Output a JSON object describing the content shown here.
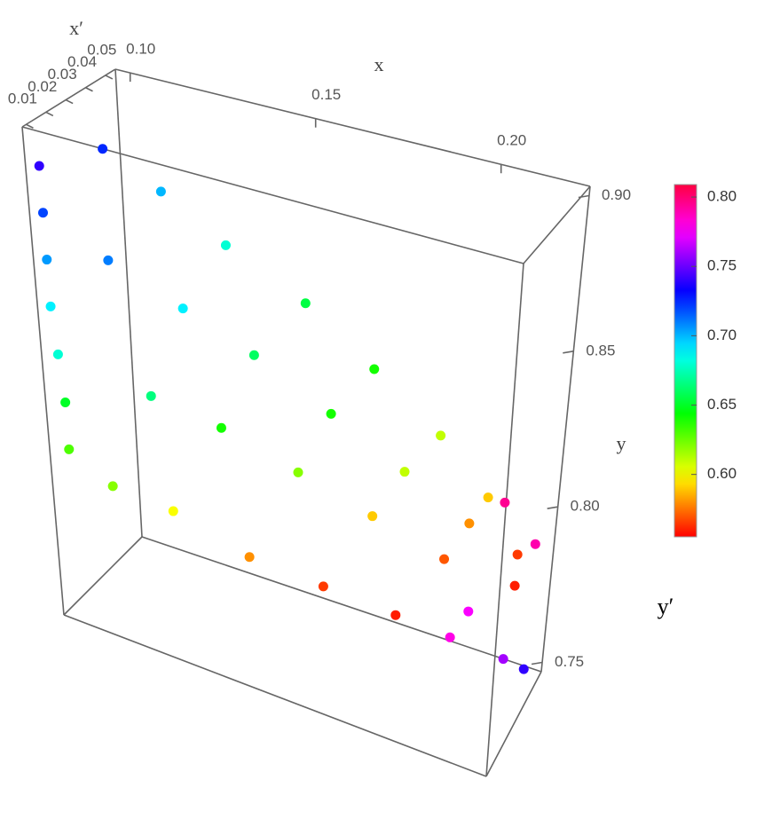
{
  "chart_data": {
    "type": "scatter3d",
    "xlabel": "x",
    "ylabel": "y",
    "zlabel": "x′",
    "colorbar_label": "y′",
    "xlim": [
      0.096,
      0.224
    ],
    "ylim": [
      0.747,
      0.903
    ],
    "zlim": [
      0.008,
      0.055
    ],
    "xticks": [
      {
        "value": 0.1,
        "label": "0.10"
      },
      0.15,
      {
        "value": 0.2,
        "label": "0.20"
      }
    ],
    "yticks": [
      0.75,
      {
        "value": 0.8,
        "label": "0.80"
      },
      0.85,
      {
        "value": 0.9,
        "label": "0.90"
      }
    ],
    "zticks": [
      0.01,
      0.02,
      0.03,
      0.04,
      0.05
    ],
    "colormap": "hue",
    "colorlim": [
      0.555,
      0.809
    ],
    "colorticks": [
      {
        "value": 0.6,
        "label": "0.60"
      },
      0.65,
      {
        "value": 0.7,
        "label": "0.70"
      },
      0.75,
      {
        "value": 0.8,
        "label": "0.80"
      }
    ],
    "x": [
      0.098,
      0.098,
      0.098,
      0.098,
      0.099,
      0.1,
      0.1,
      0.105,
      0.115,
      0.13,
      0.15,
      0.17,
      0.19,
      0.205,
      0.11,
      0.125,
      0.14,
      0.16,
      0.18,
      0.2,
      0.215,
      0.12,
      0.135,
      0.155,
      0.175,
      0.195,
      0.215,
      0.11,
      0.125,
      0.145,
      0.165,
      0.185,
      0.2,
      0.215,
      0.22,
      0.21,
      0.22,
      0.205
    ],
    "y": [
      0.89,
      0.875,
      0.86,
      0.845,
      0.83,
      0.815,
      0.8,
      0.89,
      0.875,
      0.86,
      0.845,
      0.83,
      0.815,
      0.8,
      0.86,
      0.845,
      0.83,
      0.815,
      0.8,
      0.79,
      0.785,
      0.82,
      0.81,
      0.8,
      0.79,
      0.78,
      0.775,
      0.79,
      0.785,
      0.775,
      0.77,
      0.765,
      0.76,
      0.755,
      0.75,
      0.8,
      0.79,
      0.77
    ],
    "z": [
      0.011,
      0.011,
      0.011,
      0.011,
      0.011,
      0.011,
      0.011,
      0.03,
      0.04,
      0.045,
      0.05,
      0.05,
      0.05,
      0.05,
      0.02,
      0.03,
      0.04,
      0.045,
      0.05,
      0.05,
      0.05,
      0.02,
      0.03,
      0.035,
      0.04,
      0.045,
      0.05,
      0.015,
      0.02,
      0.025,
      0.03,
      0.035,
      0.04,
      0.045,
      0.05,
      0.05,
      0.05,
      0.04
    ],
    "color_values": [
      0.74,
      0.72,
      0.705,
      0.69,
      0.68,
      0.65,
      0.63,
      0.725,
      0.7,
      0.68,
      0.655,
      0.64,
      0.61,
      0.59,
      0.71,
      0.69,
      0.66,
      0.64,
      0.61,
      0.58,
      0.565,
      0.665,
      0.64,
      0.62,
      0.59,
      0.57,
      0.56,
      0.62,
      0.6,
      0.58,
      0.565,
      0.56,
      0.78,
      0.76,
      0.74,
      0.795,
      0.79,
      0.775
    ]
  }
}
